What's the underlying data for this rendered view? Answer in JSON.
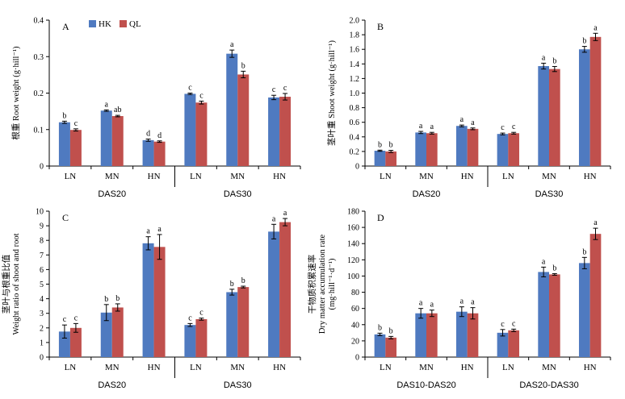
{
  "colors": {
    "HK": "#4f7ac0",
    "QL": "#c0504d",
    "axis": "#000000"
  },
  "chart_data": [
    {
      "type": "bar",
      "panel_label": "A",
      "ylabel": "根重 Root weight (g·hill⁻¹)",
      "ylim": [
        0,
        0.4
      ],
      "ytick_step": 0.1,
      "ytick_labels": [
        "0",
        "0.1",
        "0.2",
        "0.3",
        "0.4"
      ],
      "categories": [
        "LN",
        "MN",
        "HN",
        "LN",
        "MN",
        "HN"
      ],
      "groups": [
        "DAS20",
        "DAS30"
      ],
      "legend": [
        "HK",
        "QL"
      ],
      "series": [
        {
          "name": "HK",
          "values": [
            0.12,
            0.152,
            0.071,
            0.198,
            0.308,
            0.188
          ],
          "errors": [
            0.003,
            0.002,
            0.003,
            0.002,
            0.01,
            0.006
          ],
          "letters": [
            "b",
            "a",
            "d",
            "c",
            "a",
            "c"
          ]
        },
        {
          "name": "QL",
          "values": [
            0.099,
            0.137,
            0.067,
            0.174,
            0.251,
            0.19
          ],
          "errors": [
            0.003,
            0.002,
            0.002,
            0.004,
            0.009,
            0.009
          ],
          "letters": [
            "c",
            "ab",
            "d",
            "c",
            "b",
            "c"
          ]
        }
      ]
    },
    {
      "type": "bar",
      "panel_label": "B",
      "ylabel": "茎叶重 Shoot weight (g·hill⁻¹)",
      "ylim": [
        0,
        2.0
      ],
      "ytick_step": 0.2,
      "ytick_labels": [
        "0",
        "0.2",
        "0.4",
        "0.6",
        "0.8",
        "1.0",
        "1.2",
        "1.4",
        "1.6",
        "1.8",
        "2.0"
      ],
      "categories": [
        "LN",
        "MN",
        "HN",
        "LN",
        "MN",
        "HN"
      ],
      "groups": [
        "DAS20",
        "DAS30"
      ],
      "series": [
        {
          "name": "HK",
          "values": [
            0.21,
            0.46,
            0.55,
            0.44,
            1.37,
            1.6
          ],
          "errors": [
            0.008,
            0.015,
            0.012,
            0.012,
            0.04,
            0.04
          ],
          "letters": [
            "b",
            "a",
            "a",
            "c",
            "a",
            "b"
          ]
        },
        {
          "name": "QL",
          "values": [
            0.2,
            0.45,
            0.51,
            0.45,
            1.33,
            1.77
          ],
          "errors": [
            0.015,
            0.012,
            0.012,
            0.012,
            0.035,
            0.05
          ],
          "letters": [
            "b",
            "a",
            "a",
            "c",
            "b",
            "a"
          ]
        }
      ]
    },
    {
      "type": "bar",
      "panel_label": "C",
      "ylabel_lines": [
        "茎叶与根重比值",
        "Weight ratio of shoot and root"
      ],
      "ylim": [
        0,
        10
      ],
      "ytick_step": 1,
      "ytick_labels": [
        "0",
        "1",
        "2",
        "3",
        "4",
        "5",
        "6",
        "7",
        "8",
        "9",
        "10"
      ],
      "categories": [
        "LN",
        "MN",
        "HN",
        "LN",
        "MN",
        "HN"
      ],
      "groups": [
        "DAS20",
        "DAS30"
      ],
      "series": [
        {
          "name": "HK",
          "values": [
            1.75,
            3.05,
            7.8,
            2.2,
            4.45,
            8.6
          ],
          "errors": [
            0.45,
            0.55,
            0.45,
            0.1,
            0.2,
            0.5
          ],
          "letters": [
            "c",
            "b",
            "a",
            "c",
            "b",
            "a"
          ]
        },
        {
          "name": "QL",
          "values": [
            2.0,
            3.4,
            7.55,
            2.6,
            4.8,
            9.25
          ],
          "errors": [
            0.3,
            0.25,
            0.85,
            0.07,
            0.06,
            0.25
          ],
          "letters": [
            "c",
            "b",
            "a",
            "c",
            "b",
            "a"
          ]
        }
      ]
    },
    {
      "type": "bar",
      "panel_label": "D",
      "ylabel_lines": [
        "干物质积累速率",
        "Dry matter accumulation rate",
        "(mg·hill⁻¹·d⁻¹)"
      ],
      "ylim": [
        0,
        180
      ],
      "ytick_step": 20,
      "ytick_labels": [
        "0",
        "20",
        "40",
        "60",
        "80",
        "100",
        "120",
        "140",
        "160",
        "180"
      ],
      "categories": [
        "LN",
        "MN",
        "HN",
        "LN",
        "MN",
        "HN"
      ],
      "groups": [
        "DAS10-DAS20",
        "DAS20-DAS30"
      ],
      "series": [
        {
          "name": "HK",
          "values": [
            28,
            54,
            56,
            30,
            105,
            116
          ],
          "errors": [
            1.5,
            6,
            6,
            4,
            6,
            7
          ],
          "letters": [
            "b",
            "a",
            "a",
            "c",
            "a",
            "b"
          ]
        },
        {
          "name": "QL",
          "values": [
            24,
            54,
            54,
            33,
            102,
            152
          ],
          "errors": [
            1.5,
            4,
            7,
            1.5,
            1,
            7
          ],
          "letters": [
            "b",
            "a",
            "a",
            "c",
            "b",
            "a"
          ]
        }
      ]
    }
  ]
}
